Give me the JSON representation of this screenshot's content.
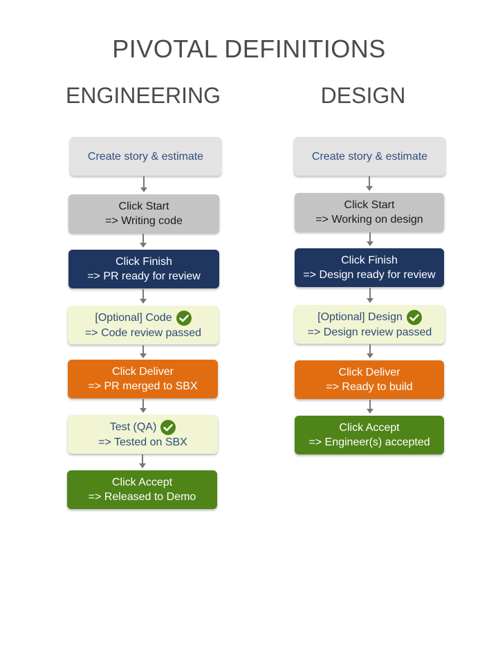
{
  "title": "PIVOTAL DEFINITIONS",
  "engineering": {
    "heading": "ENGINEERING",
    "steps": [
      {
        "line1": "Create story & estimate",
        "line2": ""
      },
      {
        "line1": "Click Start",
        "line2": "=> Writing code"
      },
      {
        "line1": "Click Finish",
        "line2": "=> PR ready for review"
      },
      {
        "line1": "[Optional] Code",
        "line2": "=> Code review passed"
      },
      {
        "line1": "Click Deliver",
        "line2": "=> PR merged to SBX"
      },
      {
        "line1": "Test (QA)",
        "line2": "=> Tested on SBX"
      },
      {
        "line1": "Click Accept",
        "line2": "=> Released to Demo"
      }
    ]
  },
  "design": {
    "heading": "DESIGN",
    "steps": [
      {
        "line1": "Create story & estimate",
        "line2": ""
      },
      {
        "line1": "Click Start",
        "line2": "=> Working on design"
      },
      {
        "line1": "Click Finish",
        "line2": "=> Design ready for review"
      },
      {
        "line1": "[Optional] Design",
        "line2": "=> Design review passed"
      },
      {
        "line1": "Click Deliver",
        "line2": "=> Ready to build"
      },
      {
        "line1": "Click Accept",
        "line2": "=> Engineer(s) accepted"
      }
    ]
  },
  "colors": {
    "light": "#e3e3e3",
    "gray": "#c4c4c4",
    "navy": "#1e3660",
    "cream": "#f2f5d3",
    "orange": "#e16d12",
    "green": "#4f8419",
    "check": "#4f8419"
  },
  "icons": {
    "check": "check-circle-icon"
  }
}
